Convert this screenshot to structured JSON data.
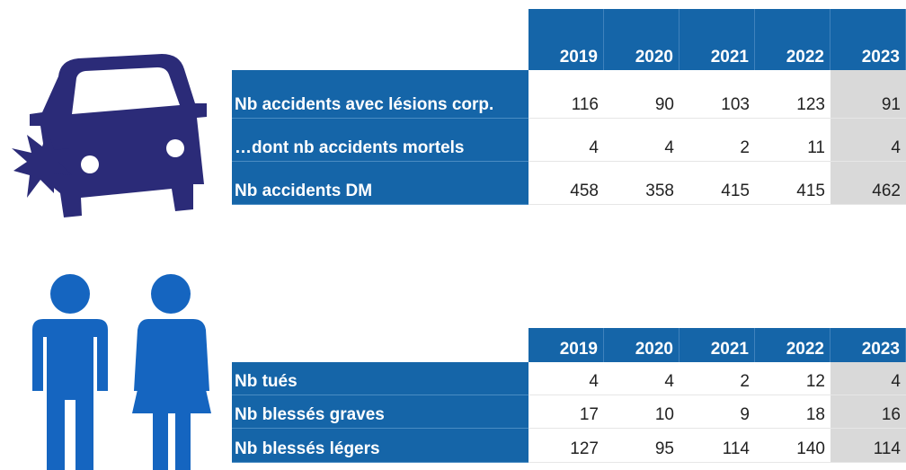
{
  "tables": [
    {
      "columns": [
        "2019",
        "2020",
        "2021",
        "2022",
        "2023"
      ],
      "rows": [
        {
          "label": "Nb accidents avec lésions corp.",
          "values": [
            116,
            90,
            103,
            123,
            91
          ]
        },
        {
          "label": "…dont nb accidents mortels",
          "values": [
            4,
            4,
            2,
            11,
            4
          ]
        },
        {
          "label": "Nb accidents DM",
          "values": [
            458,
            358,
            415,
            415,
            462
          ]
        }
      ]
    },
    {
      "columns": [
        "2019",
        "2020",
        "2021",
        "2022",
        "2023"
      ],
      "rows": [
        {
          "label": "Nb tués",
          "values": [
            4,
            4,
            2,
            12,
            4
          ]
        },
        {
          "label": "Nb blessés graves",
          "values": [
            17,
            10,
            9,
            18,
            16
          ]
        },
        {
          "label": "Nb blessés légers",
          "values": [
            127,
            95,
            114,
            140,
            114
          ]
        }
      ]
    }
  ]
}
